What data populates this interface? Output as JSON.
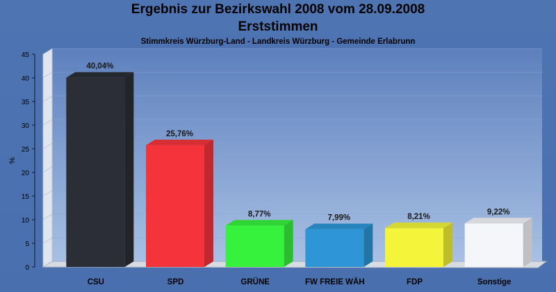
{
  "chart_data": {
    "type": "bar",
    "title": "Ergebnis zur Bezirkswahl 2008 vom 28.09.2008",
    "subtitle": "Erststimmen",
    "caption": "Stimmkreis Würzburg-Land - Landkreis Würzburg - Gemeinde Erlabrunn",
    "ylabel": "%",
    "xlabel": "",
    "ylim": [
      0,
      45
    ],
    "yticks": [
      0,
      5,
      10,
      15,
      20,
      25,
      30,
      35,
      40,
      45
    ],
    "categories": [
      "CSU",
      "SPD",
      "GRÜNE",
      "FW FREIE WÄH",
      "FDP",
      "Sonstige"
    ],
    "values": [
      40.04,
      25.76,
      8.77,
      7.99,
      8.21,
      9.22
    ],
    "value_labels": [
      "40,04%",
      "25,76%",
      "8,77%",
      "7,99%",
      "8,21%",
      "9,22%"
    ],
    "colors": [
      "#2b2e36",
      "#f4333b",
      "#36f23c",
      "#2e96d6",
      "#f4f43a",
      "#f4f6fa"
    ],
    "grid": true,
    "legend": "none"
  }
}
